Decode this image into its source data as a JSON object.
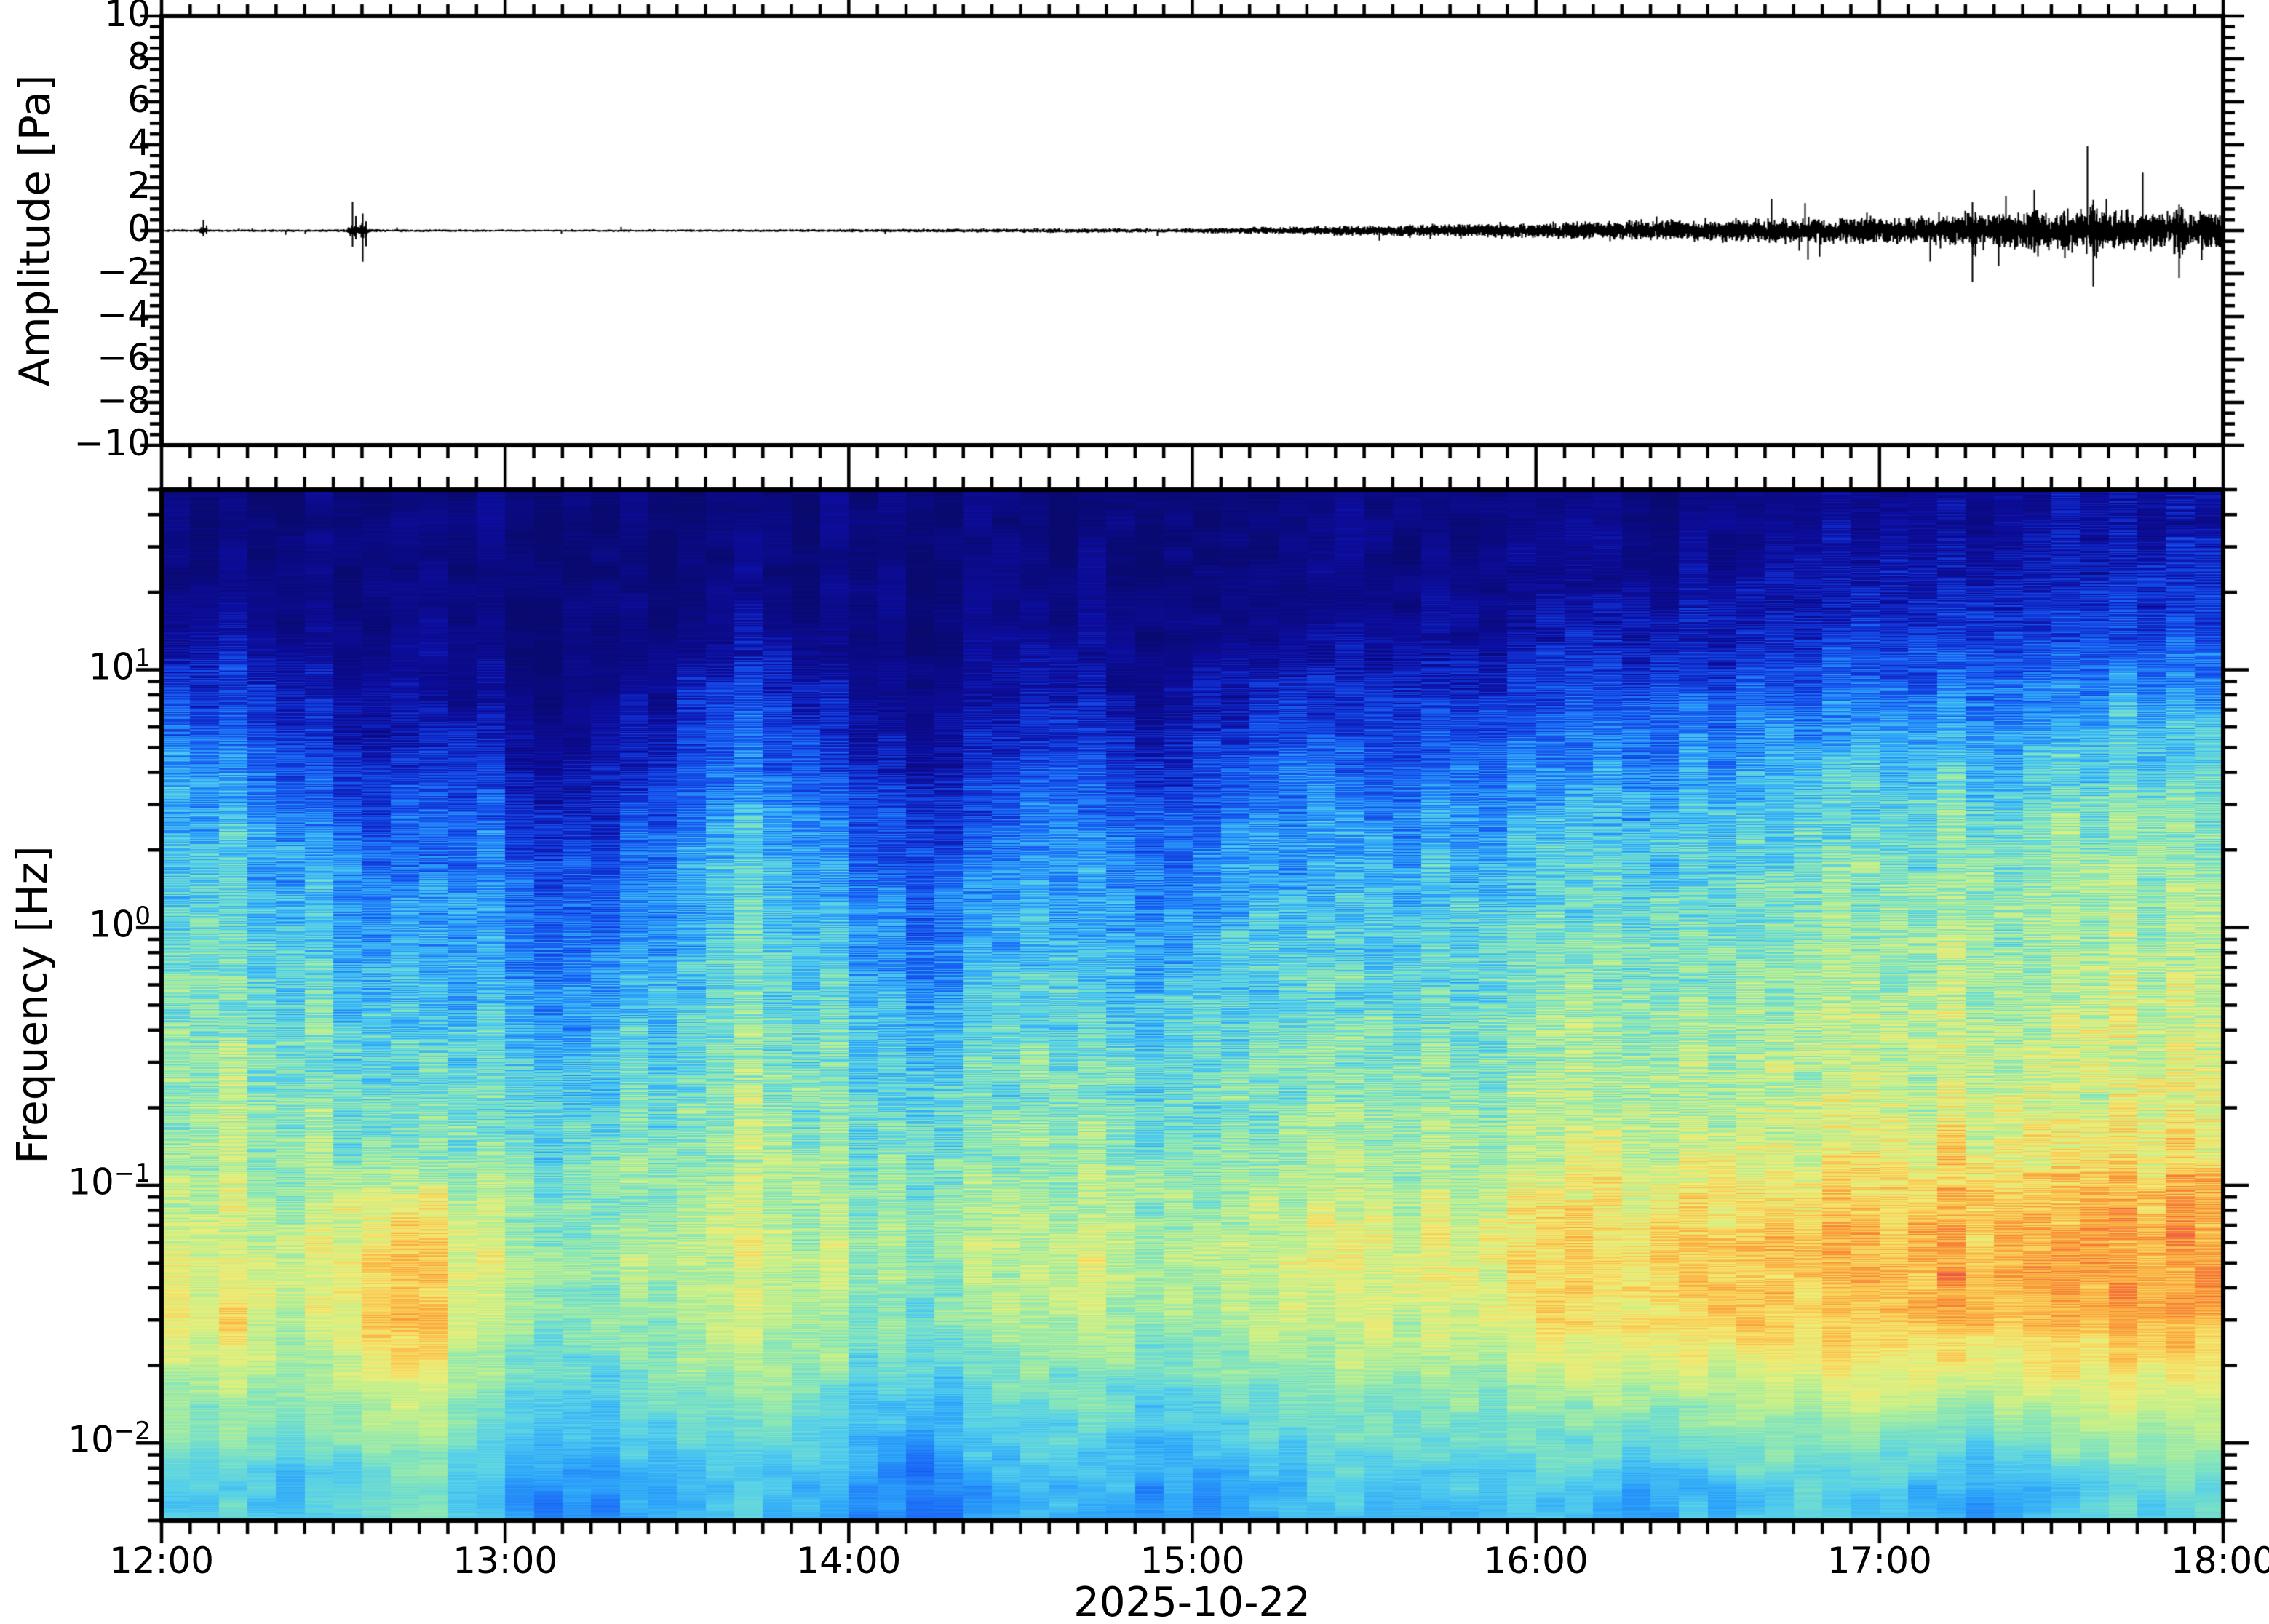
{
  "figure": {
    "background": "#ffffff",
    "frame_color": "#000000"
  },
  "x_axis": {
    "tick_labels": [
      "12:00",
      "13:00",
      "14:00",
      "15:00",
      "16:00",
      "17:00",
      "18:00"
    ],
    "minor_tick_minutes": 5,
    "label": "2025-10-22"
  },
  "chart_data": [
    {
      "type": "line",
      "title": "",
      "ylabel": "Amplitude [Pa]",
      "ylim": [
        -10,
        10
      ],
      "ytick_values": [
        10,
        8,
        6,
        4,
        2,
        0,
        -2,
        -4,
        -6,
        -8,
        -10
      ],
      "ytick_labels": [
        "10",
        "8",
        "6",
        "4",
        "2",
        "0",
        "−2",
        "−4",
        "−6",
        "−8",
        "−10"
      ],
      "minor_tick_pa": 0.5,
      "x_range": [
        "12:00",
        "18:00"
      ],
      "line_color": "#000000",
      "noise_envelope_pa": [
        [
          0.0,
          0.06
        ],
        [
          0.5,
          0.065
        ],
        [
          0.62,
          0.07
        ],
        [
          1.0,
          0.055
        ],
        [
          1.5,
          0.06
        ],
        [
          2.0,
          0.07
        ],
        [
          2.4,
          0.095
        ],
        [
          2.7,
          0.11
        ],
        [
          2.95,
          0.1
        ],
        [
          3.1,
          0.14
        ],
        [
          3.3,
          0.19
        ],
        [
          3.6,
          0.27
        ],
        [
          4.0,
          0.38
        ],
        [
          4.3,
          0.46
        ],
        [
          4.6,
          0.55
        ],
        [
          5.0,
          0.66
        ],
        [
          5.3,
          0.78
        ],
        [
          5.55,
          0.92
        ],
        [
          5.75,
          0.88
        ],
        [
          6.0,
          0.92
        ]
      ],
      "events": [
        {
          "t_hours": 0.12,
          "peak_pa": 0.5
        },
        {
          "t_hours": 0.555,
          "peak_pa": 1.35
        },
        {
          "t_hours": 0.585,
          "peak_pa": -1.45
        },
        {
          "t_hours": 5.27,
          "peak_pa": -2.4
        },
        {
          "t_hours": 5.45,
          "peak_pa": 1.9
        },
        {
          "t_hours": 5.62,
          "peak_pa": -2.6
        },
        {
          "t_hours": 5.87,
          "peak_pa": -2.2
        }
      ]
    },
    {
      "type": "heatmap",
      "ylabel": "Frequency [Hz]",
      "freq_range_hz": [
        0.005,
        50
      ],
      "log_scale": true,
      "freq_ticks": [
        {
          "base": "10",
          "exp": "1"
        },
        {
          "base": "10",
          "exp": "0"
        },
        {
          "base": "10",
          "exp": "−1"
        },
        {
          "base": "10",
          "exp": "−2"
        }
      ],
      "freq_tick_values_hz": [
        10,
        1,
        0.1,
        0.01
      ],
      "time_step_min": 10,
      "row_freqs_hz": [
        40,
        25,
        15,
        9,
        5.5,
        3.3,
        2.0,
        1.2,
        0.7,
        0.43,
        0.26,
        0.155,
        0.093,
        0.056,
        0.034,
        0.02,
        0.012,
        0.0073
      ],
      "values": [
        [
          0.04,
          0.04,
          0.04,
          0.04,
          0.04,
          0.04,
          0.04,
          0.04,
          0.04,
          0.04,
          0.04,
          0.04,
          0.04,
          0.04,
          0.04,
          0.04,
          0.04,
          0.04,
          0.05,
          0.05,
          0.05,
          0.06,
          0.06,
          0.06,
          0.07,
          0.07,
          0.08,
          0.08,
          0.09,
          0.1,
          0.1,
          0.11,
          0.12,
          0.12,
          0.13,
          0.14
        ],
        [
          0.05,
          0.06,
          0.05,
          0.04,
          0.04,
          0.05,
          0.04,
          0.04,
          0.04,
          0.05,
          0.06,
          0.05,
          0.04,
          0.04,
          0.04,
          0.05,
          0.05,
          0.04,
          0.06,
          0.06,
          0.06,
          0.07,
          0.07,
          0.08,
          0.09,
          0.1,
          0.11,
          0.12,
          0.13,
          0.14,
          0.15,
          0.16,
          0.17,
          0.18,
          0.19,
          0.2
        ],
        [
          0.1,
          0.12,
          0.08,
          0.06,
          0.05,
          0.07,
          0.04,
          0.04,
          0.06,
          0.1,
          0.12,
          0.08,
          0.05,
          0.04,
          0.06,
          0.09,
          0.07,
          0.05,
          0.09,
          0.1,
          0.09,
          0.1,
          0.11,
          0.12,
          0.14,
          0.15,
          0.17,
          0.18,
          0.2,
          0.21,
          0.22,
          0.24,
          0.25,
          0.26,
          0.27,
          0.28
        ],
        [
          0.22,
          0.25,
          0.15,
          0.1,
          0.08,
          0.12,
          0.06,
          0.06,
          0.1,
          0.2,
          0.24,
          0.16,
          0.08,
          0.07,
          0.1,
          0.18,
          0.13,
          0.09,
          0.18,
          0.2,
          0.17,
          0.18,
          0.2,
          0.22,
          0.24,
          0.26,
          0.28,
          0.3,
          0.31,
          0.33,
          0.34,
          0.36,
          0.37,
          0.38,
          0.39,
          0.4
        ],
        [
          0.33,
          0.36,
          0.25,
          0.18,
          0.15,
          0.22,
          0.1,
          0.11,
          0.18,
          0.3,
          0.34,
          0.26,
          0.14,
          0.12,
          0.18,
          0.28,
          0.22,
          0.16,
          0.28,
          0.31,
          0.27,
          0.28,
          0.3,
          0.32,
          0.34,
          0.36,
          0.38,
          0.4,
          0.41,
          0.43,
          0.44,
          0.46,
          0.47,
          0.48,
          0.49,
          0.5
        ],
        [
          0.42,
          0.44,
          0.34,
          0.27,
          0.24,
          0.31,
          0.18,
          0.19,
          0.27,
          0.38,
          0.42,
          0.34,
          0.22,
          0.2,
          0.27,
          0.36,
          0.3,
          0.25,
          0.36,
          0.39,
          0.36,
          0.37,
          0.39,
          0.41,
          0.43,
          0.45,
          0.46,
          0.48,
          0.49,
          0.51,
          0.52,
          0.53,
          0.54,
          0.55,
          0.56,
          0.57
        ],
        [
          0.48,
          0.5,
          0.41,
          0.35,
          0.32,
          0.38,
          0.26,
          0.27,
          0.34,
          0.44,
          0.48,
          0.41,
          0.3,
          0.28,
          0.34,
          0.42,
          0.37,
          0.32,
          0.42,
          0.45,
          0.42,
          0.43,
          0.45,
          0.47,
          0.49,
          0.5,
          0.52,
          0.53,
          0.54,
          0.56,
          0.57,
          0.58,
          0.59,
          0.6,
          0.6,
          0.61
        ],
        [
          0.52,
          0.54,
          0.46,
          0.41,
          0.38,
          0.43,
          0.33,
          0.34,
          0.4,
          0.48,
          0.52,
          0.46,
          0.36,
          0.34,
          0.4,
          0.47,
          0.42,
          0.38,
          0.47,
          0.5,
          0.47,
          0.48,
          0.5,
          0.52,
          0.53,
          0.55,
          0.56,
          0.57,
          0.58,
          0.59,
          0.6,
          0.61,
          0.62,
          0.62,
          0.63,
          0.64
        ],
        [
          0.55,
          0.57,
          0.5,
          0.45,
          0.43,
          0.47,
          0.38,
          0.39,
          0.44,
          0.52,
          0.55,
          0.5,
          0.41,
          0.39,
          0.44,
          0.51,
          0.47,
          0.43,
          0.51,
          0.53,
          0.51,
          0.52,
          0.53,
          0.55,
          0.57,
          0.58,
          0.59,
          0.6,
          0.61,
          0.62,
          0.63,
          0.64,
          0.64,
          0.65,
          0.66,
          0.66
        ],
        [
          0.58,
          0.6,
          0.54,
          0.5,
          0.48,
          0.52,
          0.44,
          0.45,
          0.49,
          0.56,
          0.58,
          0.54,
          0.46,
          0.45,
          0.49,
          0.55,
          0.51,
          0.48,
          0.55,
          0.57,
          0.55,
          0.56,
          0.57,
          0.58,
          0.6,
          0.61,
          0.62,
          0.63,
          0.64,
          0.65,
          0.65,
          0.66,
          0.67,
          0.67,
          0.68,
          0.68
        ],
        [
          0.6,
          0.62,
          0.57,
          0.53,
          0.52,
          0.55,
          0.49,
          0.5,
          0.53,
          0.59,
          0.61,
          0.57,
          0.51,
          0.5,
          0.53,
          0.58,
          0.55,
          0.52,
          0.58,
          0.6,
          0.58,
          0.59,
          0.6,
          0.61,
          0.62,
          0.63,
          0.64,
          0.65,
          0.66,
          0.67,
          0.67,
          0.68,
          0.69,
          0.69,
          0.7,
          0.7
        ],
        [
          0.62,
          0.64,
          0.6,
          0.57,
          0.56,
          0.58,
          0.54,
          0.54,
          0.57,
          0.62,
          0.63,
          0.6,
          0.55,
          0.54,
          0.57,
          0.61,
          0.58,
          0.56,
          0.61,
          0.62,
          0.61,
          0.62,
          0.63,
          0.64,
          0.66,
          0.67,
          0.68,
          0.69,
          0.7,
          0.71,
          0.72,
          0.73,
          0.73,
          0.74,
          0.74,
          0.75
        ],
        [
          0.64,
          0.66,
          0.64,
          0.7,
          0.72,
          0.66,
          0.6,
          0.58,
          0.61,
          0.65,
          0.66,
          0.63,
          0.59,
          0.58,
          0.61,
          0.65,
          0.63,
          0.6,
          0.65,
          0.67,
          0.66,
          0.67,
          0.68,
          0.7,
          0.72,
          0.74,
          0.76,
          0.77,
          0.79,
          0.8,
          0.81,
          0.82,
          0.82,
          0.83,
          0.83,
          0.84
        ],
        [
          0.68,
          0.72,
          0.67,
          0.78,
          0.8,
          0.7,
          0.62,
          0.6,
          0.64,
          0.68,
          0.7,
          0.66,
          0.61,
          0.6,
          0.64,
          0.68,
          0.66,
          0.62,
          0.68,
          0.7,
          0.69,
          0.7,
          0.72,
          0.74,
          0.76,
          0.78,
          0.8,
          0.81,
          0.82,
          0.83,
          0.84,
          0.84,
          0.85,
          0.85,
          0.86,
          0.86
        ],
        [
          0.7,
          0.76,
          0.66,
          0.78,
          0.8,
          0.68,
          0.6,
          0.58,
          0.62,
          0.66,
          0.68,
          0.64,
          0.58,
          0.57,
          0.62,
          0.66,
          0.64,
          0.6,
          0.66,
          0.68,
          0.67,
          0.68,
          0.7,
          0.72,
          0.74,
          0.76,
          0.78,
          0.79,
          0.8,
          0.81,
          0.82,
          0.82,
          0.83,
          0.83,
          0.84,
          0.84
        ],
        [
          0.62,
          0.66,
          0.58,
          0.68,
          0.7,
          0.6,
          0.54,
          0.52,
          0.56,
          0.6,
          0.62,
          0.58,
          0.52,
          0.5,
          0.55,
          0.58,
          0.57,
          0.54,
          0.58,
          0.6,
          0.6,
          0.61,
          0.62,
          0.64,
          0.66,
          0.67,
          0.68,
          0.69,
          0.7,
          0.7,
          0.71,
          0.71,
          0.72,
          0.72,
          0.72,
          0.73
        ],
        [
          0.55,
          0.58,
          0.52,
          0.6,
          0.62,
          0.54,
          0.48,
          0.46,
          0.5,
          0.53,
          0.55,
          0.52,
          0.45,
          0.42,
          0.48,
          0.52,
          0.5,
          0.47,
          0.51,
          0.53,
          0.53,
          0.54,
          0.55,
          0.56,
          0.54,
          0.58,
          0.52,
          0.59,
          0.61,
          0.6,
          0.58,
          0.52,
          0.56,
          0.62,
          0.63,
          0.63
        ],
        [
          0.48,
          0.52,
          0.45,
          0.54,
          0.55,
          0.47,
          0.4,
          0.38,
          0.44,
          0.46,
          0.48,
          0.45,
          0.36,
          0.34,
          0.42,
          0.46,
          0.44,
          0.4,
          0.44,
          0.46,
          0.47,
          0.48,
          0.48,
          0.5,
          0.46,
          0.44,
          0.44,
          0.48,
          0.52,
          0.48,
          0.46,
          0.42,
          0.44,
          0.5,
          0.52,
          0.52
        ]
      ],
      "colormap": [
        [
          0.0,
          "#09096e"
        ],
        [
          0.12,
          "#0d0d9e"
        ],
        [
          0.22,
          "#1030d2"
        ],
        [
          0.32,
          "#1860f5"
        ],
        [
          0.42,
          "#2da5fa"
        ],
        [
          0.5,
          "#55d0eb"
        ],
        [
          0.58,
          "#87e6b9"
        ],
        [
          0.66,
          "#c3f08c"
        ],
        [
          0.73,
          "#eeee78"
        ],
        [
          0.79,
          "#fad25a"
        ],
        [
          0.85,
          "#faa83e"
        ],
        [
          0.91,
          "#f6783a"
        ],
        [
          0.96,
          "#eb5248"
        ],
        [
          1.0,
          "#e23e42"
        ]
      ]
    }
  ]
}
